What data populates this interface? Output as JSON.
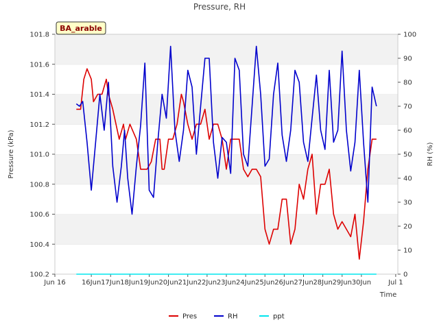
{
  "chart_data": {
    "type": "line",
    "title": "Pressure, RH",
    "badge": "BA_arable",
    "xlabel": "Time",
    "ylabel_left": "Pressure (kPa)",
    "ylabel_right": "RH (%)",
    "x_domain": [
      "2024-06-15",
      "2024-07-01"
    ],
    "y_left_lim": [
      100.2,
      101.8
    ],
    "y_right_lim": [
      0,
      100
    ],
    "x_ticks": [
      "Jun 16",
      "16Jun",
      "17Jun",
      "18Jun",
      "19Jun",
      "20Jun",
      "21Jun",
      "22Jun",
      "23Jun",
      "24Jun",
      "25Jun",
      "26Jun",
      "27Jun",
      "28Jun",
      "29Jun",
      "30Jun",
      "Jul 1"
    ],
    "y_left_ticks": [
      "100.2",
      "100.4",
      "100.6",
      "100.8",
      "101.0",
      "101.2",
      "101.4",
      "101.6",
      "101.8"
    ],
    "y_right_ticks": [
      "0",
      "10",
      "20",
      "30",
      "40",
      "50",
      "60",
      "70",
      "80",
      "90",
      "100"
    ],
    "legend_position": "bottom-center",
    "grid": "horizontal bands",
    "series": [
      {
        "name": "Pres",
        "axis": "left",
        "color": "#dd0000",
        "x": [
          16.0,
          16.2,
          16.35,
          16.5,
          16.7,
          16.8,
          17.0,
          17.2,
          17.4,
          17.5,
          17.7,
          17.85,
          18.0,
          18.2,
          18.3,
          18.5,
          18.8,
          19.0,
          19.1,
          19.3,
          19.5,
          19.7,
          19.9,
          20.0,
          20.1,
          20.3,
          20.5,
          20.7,
          20.9,
          21.0,
          21.2,
          21.4,
          21.6,
          21.8,
          22.0,
          22.2,
          22.4,
          22.6,
          22.8,
          23.0,
          23.2,
          23.4,
          23.6,
          23.8,
          24.0,
          24.2,
          24.4,
          24.6,
          24.8,
          25.0,
          25.2,
          25.4,
          25.6,
          25.8,
          26.0,
          26.2,
          26.4,
          26.6,
          26.8,
          27.0,
          27.2,
          27.4,
          27.6,
          27.8,
          28.0,
          28.2,
          28.4,
          28.6,
          28.8,
          29.0,
          29.2,
          29.4,
          29.6,
          29.8,
          30.0
        ],
        "y": [
          101.3,
          101.3,
          101.5,
          101.57,
          101.5,
          101.35,
          101.4,
          101.4,
          101.5,
          101.4,
          101.3,
          101.2,
          101.1,
          101.2,
          101.1,
          101.2,
          101.1,
          100.9,
          100.9,
          100.9,
          100.95,
          101.1,
          101.1,
          100.9,
          100.9,
          101.1,
          101.1,
          101.2,
          101.4,
          101.35,
          101.2,
          101.1,
          101.2,
          101.2,
          101.3,
          101.1,
          101.2,
          101.2,
          101.1,
          100.9,
          101.1,
          101.1,
          101.1,
          100.9,
          100.85,
          100.9,
          100.9,
          100.85,
          100.5,
          100.4,
          100.5,
          100.5,
          100.7,
          100.7,
          100.4,
          100.5,
          100.8,
          100.7,
          100.9,
          101.0,
          100.6,
          100.8,
          100.8,
          100.9,
          100.6,
          100.5,
          100.55,
          100.5,
          100.45,
          100.6,
          100.3,
          100.55,
          100.9,
          101.1,
          101.1
        ]
      },
      {
        "name": "RH",
        "axis": "right",
        "color": "#0000cc",
        "x": [
          16.0,
          16.15,
          16.3,
          16.5,
          16.7,
          16.9,
          17.1,
          17.3,
          17.5,
          17.7,
          17.9,
          18.1,
          18.25,
          18.4,
          18.6,
          18.8,
          19.0,
          19.2,
          19.4,
          19.6,
          19.8,
          20.0,
          20.2,
          20.4,
          20.6,
          20.8,
          21.0,
          21.2,
          21.4,
          21.6,
          21.8,
          22.0,
          22.2,
          22.4,
          22.6,
          22.8,
          23.0,
          23.2,
          23.4,
          23.6,
          23.8,
          24.0,
          24.2,
          24.4,
          24.6,
          24.8,
          25.0,
          25.2,
          25.4,
          25.6,
          25.8,
          26.0,
          26.2,
          26.4,
          26.6,
          26.8,
          27.0,
          27.2,
          27.4,
          27.6,
          27.8,
          28.0,
          28.2,
          28.4,
          28.6,
          28.8,
          29.0,
          29.2,
          29.4,
          29.6,
          29.8,
          30.0
        ],
        "y": [
          71,
          70,
          72,
          55,
          35,
          55,
          75,
          60,
          80,
          45,
          30,
          45,
          60,
          40,
          25,
          45,
          62,
          88,
          35,
          32,
          55,
          75,
          65,
          95,
          60,
          47,
          60,
          85,
          78,
          50,
          70,
          90,
          90,
          55,
          40,
          57,
          55,
          42,
          90,
          85,
          50,
          45,
          70,
          95,
          75,
          45,
          48,
          75,
          88,
          58,
          47,
          60,
          85,
          80,
          55,
          47,
          65,
          83,
          60,
          52,
          85,
          55,
          60,
          93,
          60,
          43,
          55,
          85,
          55,
          30,
          78,
          70
        ]
      },
      {
        "name": "ppt",
        "axis": "right",
        "color": "#00e5ee",
        "x": [
          16.0,
          30.0
        ],
        "y": [
          0,
          0
        ]
      }
    ]
  }
}
